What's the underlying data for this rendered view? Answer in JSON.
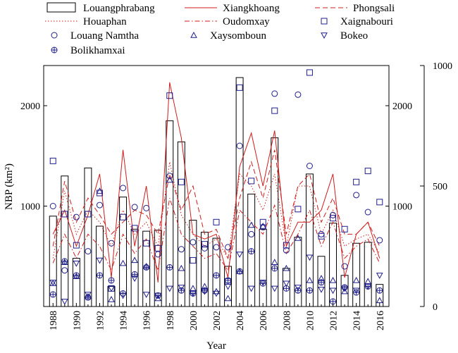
{
  "chart_data": {
    "type": "bar",
    "xlabel": "Year",
    "ylabel_left": "NBP (km²)",
    "left_ticks": [
      1000,
      2000
    ],
    "right_ticks": [
      0,
      500,
      1000
    ],
    "x_ticks": [
      1988,
      1990,
      1992,
      1994,
      1996,
      1998,
      2000,
      2002,
      2004,
      2006,
      2008,
      2010,
      2012,
      2014,
      2016
    ],
    "years": [
      1988,
      1989,
      1990,
      1991,
      1992,
      1993,
      1994,
      1995,
      1996,
      1997,
      1998,
      1999,
      2000,
      2001,
      2002,
      2003,
      2004,
      2005,
      2006,
      2007,
      2008,
      2009,
      2010,
      2011,
      2012,
      2013,
      2014,
      2015,
      2016
    ],
    "left_range": [
      0,
      2400
    ],
    "right_range": [
      0,
      1000
    ],
    "grid": false,
    "legend_position": "top",
    "colors": {
      "series": "#d01c1c",
      "markers": "#1f1f8c",
      "bars": "#000000"
    },
    "series": [
      {
        "name": "Louangphrabang",
        "kind": "bar",
        "axis": "left",
        "values": [
          900,
          1300,
          480,
          1380,
          800,
          200,
          1090,
          770,
          750,
          760,
          1850,
          1640,
          860,
          740,
          680,
          400,
          2280,
          1120,
          770,
          1680,
          380,
          690,
          1320,
          500,
          830,
          310,
          630,
          640,
          220
        ]
      },
      {
        "name": "Xiangkhoang",
        "kind": "line",
        "style": "solid",
        "axis": "right",
        "values": [
          300,
          400,
          250,
          380,
          550,
          120,
          650,
          250,
          500,
          100,
          930,
          700,
          300,
          280,
          300,
          120,
          580,
          720,
          500,
          730,
          250,
          350,
          350,
          400,
          550,
          120,
          300,
          350,
          200
        ]
      },
      {
        "name": "Phongsali",
        "kind": "line",
        "style": "dashed",
        "axis": "right",
        "values": [
          250,
          520,
          350,
          450,
          380,
          300,
          350,
          400,
          380,
          300,
          550,
          400,
          500,
          300,
          320,
          200,
          450,
          600,
          450,
          650,
          300,
          500,
          550,
          350,
          450,
          300,
          300,
          350,
          250
        ]
      },
      {
        "name": "Houaphan",
        "kind": "line",
        "style": "dotted",
        "axis": "right",
        "values": [
          200,
          480,
          300,
          400,
          350,
          250,
          400,
          300,
          350,
          250,
          600,
          380,
          300,
          250,
          280,
          200,
          550,
          500,
          400,
          550,
          250,
          500,
          500,
          300,
          400,
          250,
          280,
          300,
          220
        ]
      },
      {
        "name": "Oudomxay",
        "kind": "line",
        "style": "dashdot",
        "axis": "right",
        "values": [
          180,
          300,
          200,
          300,
          250,
          150,
          300,
          220,
          280,
          150,
          450,
          300,
          250,
          200,
          220,
          150,
          400,
          350,
          300,
          420,
          220,
          300,
          400,
          250,
          350,
          200,
          250,
          280,
          180
        ]
      },
      {
        "name": "Xaignabouri",
        "kind": "marker",
        "marker": "square",
        "axis": "left",
        "values": [
          1450,
          920,
          610,
          920,
          1130,
          180,
          890,
          780,
          630,
          580,
          2100,
          1240,
          460,
          620,
          840,
          250,
          2180,
          1250,
          840,
          1950,
          610,
          970,
          2330,
          700,
          880,
          770,
          1240,
          1350,
          1040
        ]
      },
      {
        "name": "Louang Namtha",
        "kind": "marker",
        "marker": "circle",
        "axis": "left",
        "values": [
          1000,
          360,
          890,
          550,
          1010,
          630,
          1180,
          990,
          980,
          520,
          1300,
          570,
          640,
          580,
          590,
          590,
          1600,
          720,
          790,
          2120,
          560,
          2110,
          1400,
          720,
          910,
          400,
          1110,
          940,
          660
        ]
      },
      {
        "name": "Xaysomboun",
        "kind": "marker",
        "marker": "triangle-up",
        "axis": "left",
        "values": [
          230,
          440,
          300,
          100,
          1150,
          70,
          430,
          460,
          400,
          80,
          1260,
          380,
          180,
          200,
          150,
          80,
          350,
          810,
          800,
          440,
          380,
          680,
          260,
          280,
          260,
          150,
          260,
          250,
          60
        ]
      },
      {
        "name": "Bokeo",
        "kind": "marker",
        "marker": "triangle-down",
        "axis": "left",
        "values": [
          240,
          50,
          430,
          120,
          460,
          180,
          110,
          280,
          120,
          110,
          180,
          190,
          130,
          150,
          130,
          200,
          520,
          180,
          240,
          180,
          230,
          190,
          490,
          170,
          160,
          180,
          160,
          200,
          310
        ]
      },
      {
        "name": "Bolikhamxai",
        "kind": "marker",
        "marker": "circle-plus",
        "axis": "left",
        "values": [
          120,
          450,
          310,
          90,
          310,
          260,
          130,
          320,
          390,
          110,
          390,
          160,
          130,
          160,
          310,
          260,
          350,
          550,
          230,
          380,
          180,
          160,
          160,
          240,
          50,
          190,
          140,
          200,
          160
        ]
      }
    ]
  }
}
